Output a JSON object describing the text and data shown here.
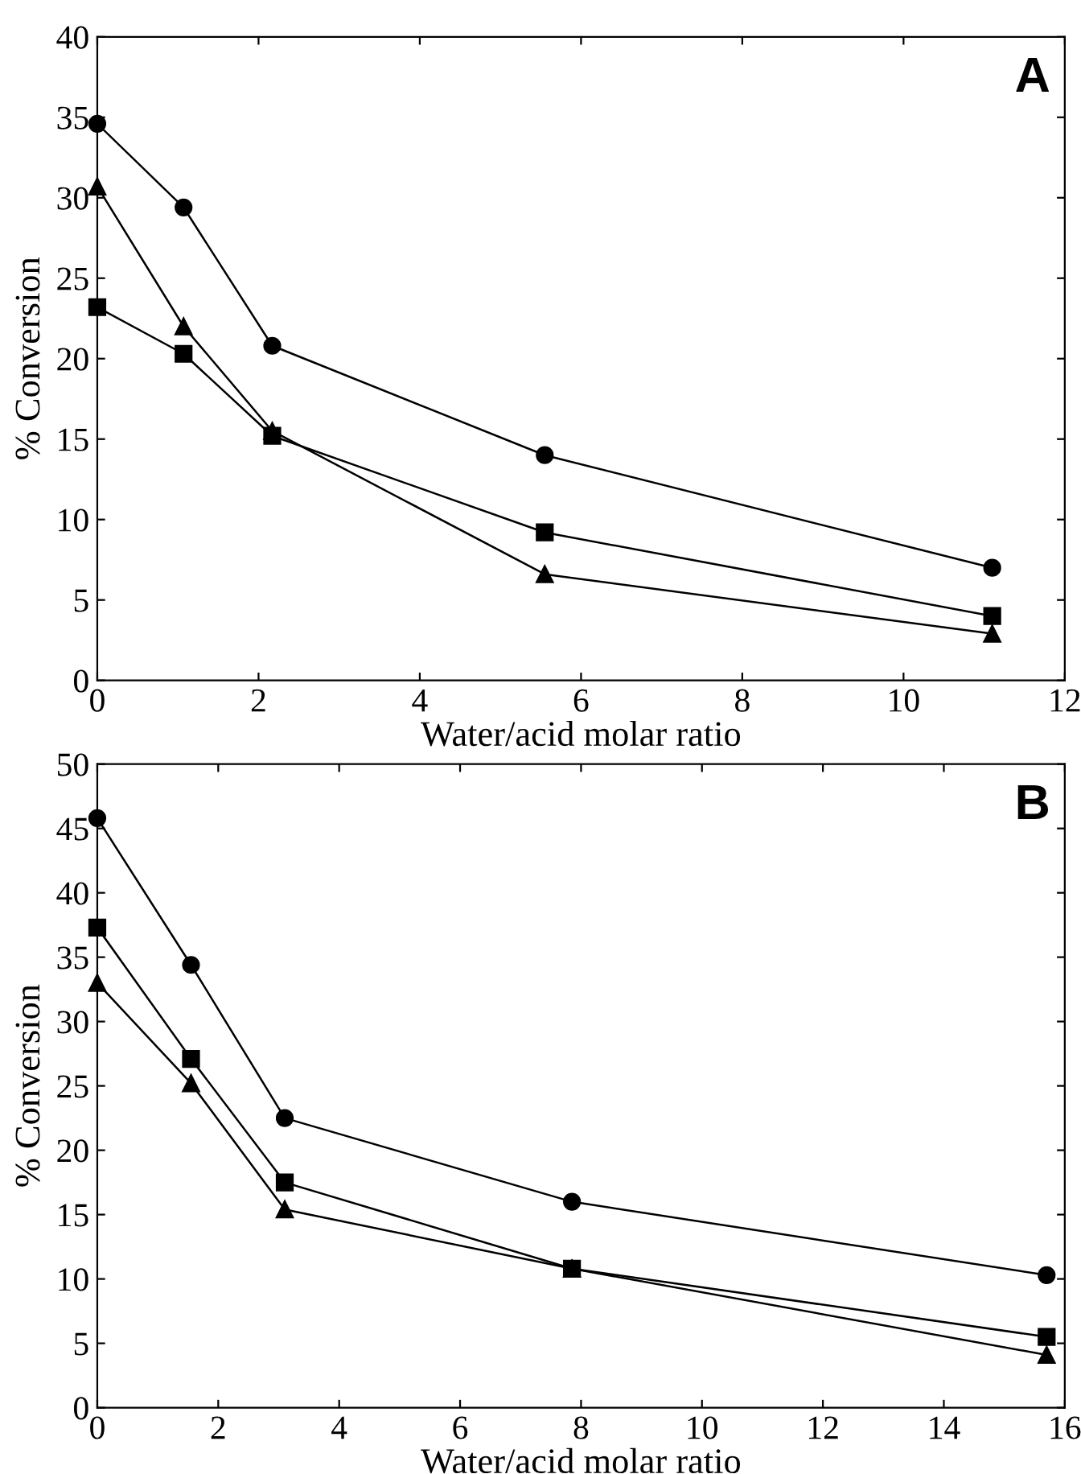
{
  "chart_data": [
    {
      "type": "line",
      "xlabel": "Water/acid molar ratio",
      "ylabel": "% Conversion",
      "annotations": [
        "A"
      ],
      "xlim": [
        0,
        12
      ],
      "ylim": [
        0,
        40
      ],
      "xticks": [
        0,
        2,
        4,
        6,
        8,
        10,
        12
      ],
      "yticks": [
        0,
        5,
        10,
        15,
        20,
        25,
        30,
        35,
        40
      ],
      "grid": false,
      "series": [
        {
          "color": "#000000",
          "marker": "circle",
          "x": [
            0,
            1.07,
            2.17,
            5.55,
            11.1
          ],
          "values": [
            34.6,
            29.4,
            20.8,
            14.0,
            7.0
          ]
        },
        {
          "color": "#000000",
          "marker": "square",
          "x": [
            0,
            1.07,
            2.17,
            5.55,
            11.1
          ],
          "values": [
            23.2,
            20.3,
            15.2,
            9.2,
            4.0
          ]
        },
        {
          "color": "#000000",
          "marker": "triangle",
          "x": [
            0,
            1.07,
            2.17,
            5.55,
            11.1
          ],
          "values": [
            30.7,
            22.0,
            15.5,
            6.6,
            2.9
          ]
        }
      ]
    },
    {
      "type": "line",
      "xlabel": "Water/acid molar ratio",
      "ylabel": "% Conversion",
      "annotations": [
        "B"
      ],
      "xlim": [
        0,
        16
      ],
      "ylim": [
        0,
        50
      ],
      "xticks": [
        0,
        2,
        4,
        6,
        8,
        10,
        12,
        14,
        16
      ],
      "yticks": [
        0,
        5,
        10,
        15,
        20,
        25,
        30,
        35,
        40,
        45,
        50
      ],
      "grid": false,
      "series": [
        {
          "color": "#000000",
          "marker": "circle",
          "x": [
            0,
            1.55,
            3.1,
            7.85,
            15.7
          ],
          "values": [
            45.8,
            34.4,
            22.5,
            16.0,
            10.3
          ]
        },
        {
          "color": "#000000",
          "marker": "square",
          "x": [
            0,
            1.55,
            3.1,
            7.85,
            15.7
          ],
          "values": [
            37.3,
            27.1,
            17.5,
            10.8,
            5.5
          ]
        },
        {
          "color": "#000000",
          "marker": "triangle",
          "x": [
            0,
            1.55,
            3.1,
            7.85,
            15.7
          ],
          "values": [
            33.0,
            25.2,
            15.4,
            10.8,
            4.1
          ]
        }
      ]
    }
  ]
}
